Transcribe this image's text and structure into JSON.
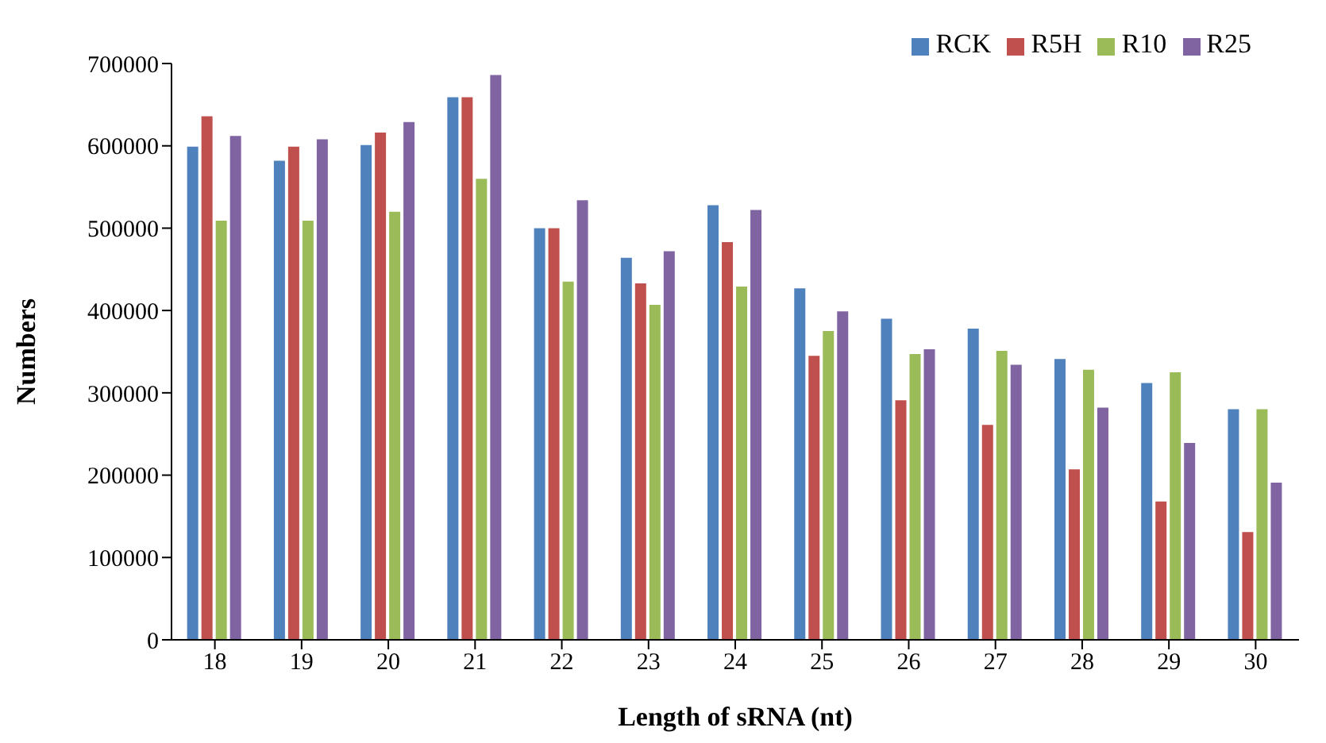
{
  "chart_data": {
    "type": "bar",
    "xlabel": "Length of  sRNA (nt)",
    "ylabel": "Numbers",
    "categories": [
      "18",
      "19",
      "20",
      "21",
      "22",
      "23",
      "24",
      "25",
      "26",
      "27",
      "28",
      "29",
      "30"
    ],
    "series": [
      {
        "name": "RCK",
        "color": "#4f81bd",
        "values": [
          599000,
          582000,
          601000,
          659000,
          500000,
          464000,
          528000,
          427000,
          390000,
          378000,
          341000,
          312000,
          280000
        ]
      },
      {
        "name": "R5H",
        "color": "#c0504d",
        "values": [
          636000,
          599000,
          616000,
          659000,
          500000,
          433000,
          483000,
          345000,
          291000,
          261000,
          207000,
          168000,
          131000
        ]
      },
      {
        "name": "R10",
        "color": "#9bbb59",
        "values": [
          509000,
          509000,
          520000,
          560000,
          435000,
          407000,
          429000,
          375000,
          347000,
          351000,
          328000,
          325000,
          280000
        ]
      },
      {
        "name": "R25",
        "color": "#8064a2",
        "values": [
          612000,
          608000,
          629000,
          686000,
          534000,
          472000,
          522000,
          399000,
          353000,
          334000,
          282000,
          239000,
          191000
        ]
      }
    ],
    "ylim": [
      0,
      700000
    ],
    "yticks": [
      0,
      100000,
      200000,
      300000,
      400000,
      500000,
      600000,
      700000
    ],
    "grid": false,
    "legend": "top right"
  }
}
